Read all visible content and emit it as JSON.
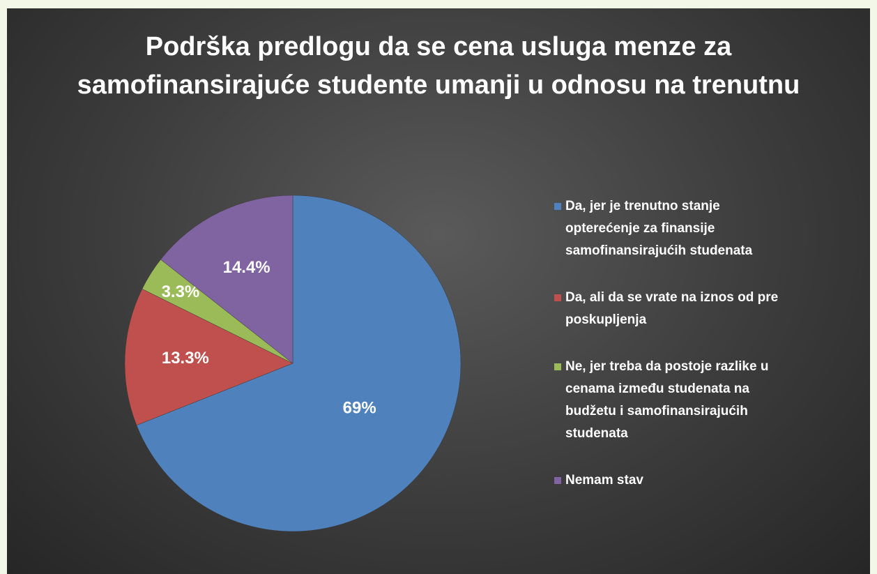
{
  "chart_data": {
    "type": "pie",
    "title": "Podrška predlogu da se cena usluga menze za samofinansirajuće studente umanji u odnosu na trenutnu",
    "categories": [
      "Da, jer je trenutno stanje opterećenje za finansije samofinansirajućih studenata",
      "Da, ali da se vrate na iznos od pre poskupljenja",
      "Ne, jer treba da postoje razlike u cenama između studenata na budžetu i samofinansirajućih studenata",
      "Nemam stav"
    ],
    "values": [
      69,
      13.3,
      3.3,
      14.4
    ],
    "value_labels": [
      "69%",
      "13.3%",
      "3.3%",
      "14.4%"
    ],
    "colors": [
      "#4f81bd",
      "#c0504d",
      "#9bbb59",
      "#8064a2"
    ],
    "legend": "right"
  }
}
